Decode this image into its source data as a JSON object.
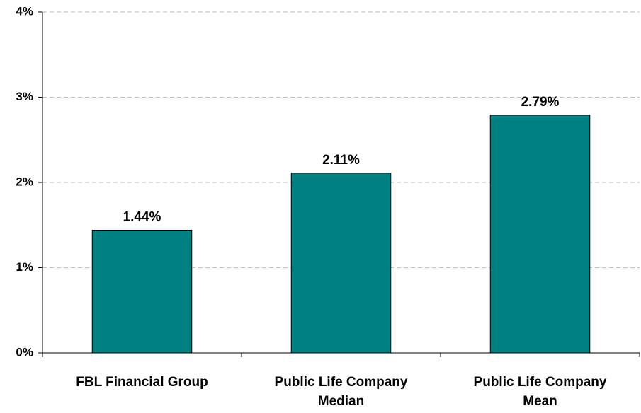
{
  "chart_data": {
    "type": "bar",
    "categories": [
      "FBL Financial Group",
      "Public Life Company Median",
      "Public Life Company Mean"
    ],
    "values": [
      1.44,
      2.11,
      2.79
    ],
    "value_labels": [
      "1.44%",
      "2.11%",
      "2.79%"
    ],
    "color": "#008080",
    "ylim": [
      0,
      4
    ],
    "yticks": [
      {
        "value": 0,
        "label": "0%"
      },
      {
        "value": 1,
        "label": "1%"
      },
      {
        "value": 2,
        "label": "2%"
      },
      {
        "value": 3,
        "label": "3%"
      },
      {
        "value": 4,
        "label": "4%"
      }
    ],
    "grid": true
  }
}
